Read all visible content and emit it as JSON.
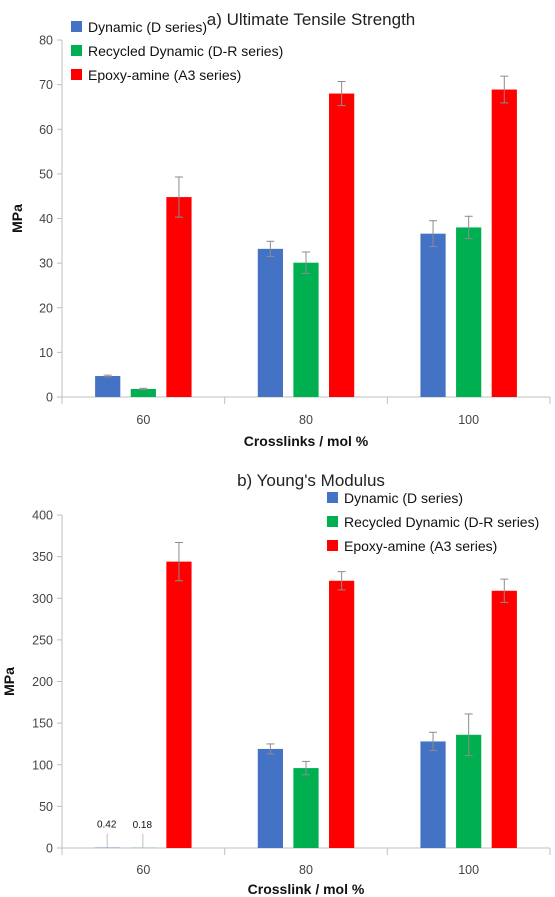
{
  "chart_data": [
    {
      "type": "bar",
      "title": "a) Ultimate Tensile Strength",
      "xlabel": "Crosslinks / mol %",
      "ylabel": "MPa",
      "ylim": [
        0,
        80
      ],
      "yticks": [
        0,
        10,
        20,
        30,
        40,
        50,
        60,
        70,
        80
      ],
      "categories": [
        "60",
        "80",
        "100"
      ],
      "grid": false,
      "legend_position": "top-left",
      "series": [
        {
          "name": "Dynamic (D series)",
          "color": "#4472C4",
          "values": [
            4.7,
            33.2,
            36.6
          ],
          "errors": [
            0.2,
            1.7,
            2.9
          ]
        },
        {
          "name": "Recycled Dynamic (D-R series)",
          "color": "#00B050",
          "values": [
            1.8,
            30.1,
            38.0
          ],
          "errors": [
            0.15,
            2.4,
            2.5
          ]
        },
        {
          "name": "Epoxy-amine (A3 series)",
          "color": "#FF0000",
          "values": [
            44.8,
            68.0,
            68.9
          ],
          "errors": [
            4.5,
            2.7,
            3.0
          ]
        }
      ],
      "data_labels": []
    },
    {
      "type": "bar",
      "title": "b) Young's Modulus",
      "xlabel": "Crosslink / mol %",
      "ylabel": "MPa",
      "ylim": [
        0,
        400
      ],
      "yticks": [
        0,
        50,
        100,
        150,
        200,
        250,
        300,
        350,
        400
      ],
      "categories": [
        "60",
        "80",
        "100"
      ],
      "grid": false,
      "legend_position": "top-right",
      "series": [
        {
          "name": "Dynamic (D series)",
          "color": "#4472C4",
          "values": [
            0.42,
            119,
            128
          ],
          "errors": [
            0,
            6,
            11
          ]
        },
        {
          "name": "Recycled Dynamic (D-R series)",
          "color": "#00B050",
          "values": [
            0.18,
            96,
            136
          ],
          "errors": [
            0,
            8,
            25
          ]
        },
        {
          "name": "Epoxy-amine (A3 series)",
          "color": "#FF0000",
          "values": [
            344,
            321,
            309
          ],
          "errors": [
            23,
            11,
            14
          ]
        }
      ],
      "data_labels": [
        {
          "series": 0,
          "category": 0,
          "text": "0.42"
        },
        {
          "series": 1,
          "category": 0,
          "text": "0.18"
        }
      ]
    }
  ]
}
